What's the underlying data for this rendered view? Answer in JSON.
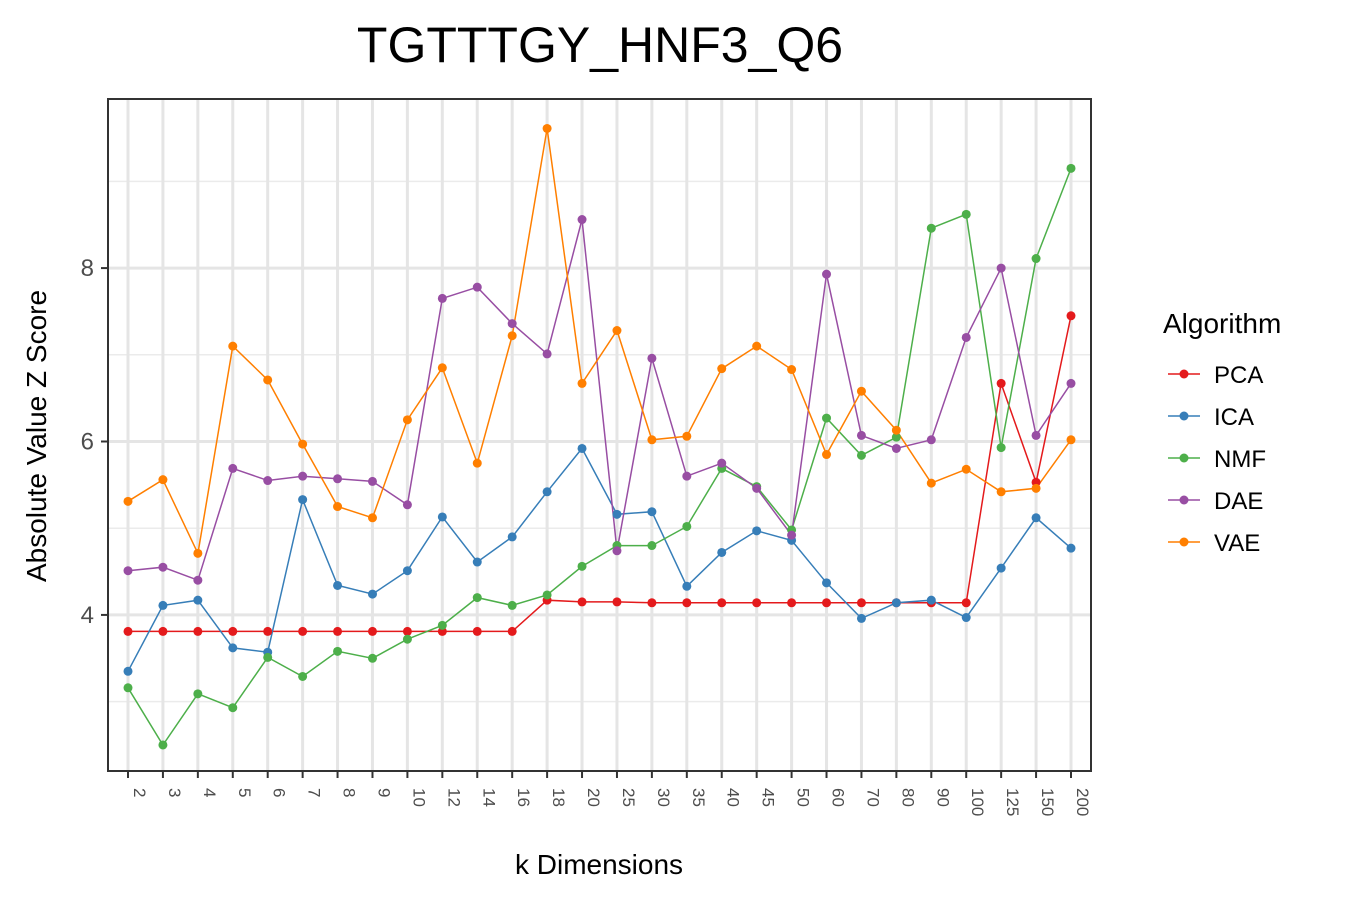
{
  "chart_data": {
    "type": "line",
    "title": "TGTTTGY_HNF3_Q6",
    "xlabel": "k Dimensions",
    "ylabel": "Absolute Value Z Score",
    "categories": [
      "2",
      "3",
      "4",
      "5",
      "6",
      "7",
      "8",
      "9",
      "10",
      "12",
      "14",
      "16",
      "18",
      "20",
      "25",
      "30",
      "35",
      "40",
      "45",
      "50",
      "60",
      "70",
      "80",
      "90",
      "100",
      "125",
      "150",
      "200"
    ],
    "ylim": [
      2.2,
      9.95
    ],
    "yticks": [
      4,
      6,
      8
    ],
    "grid": true,
    "legend_title": "Algorithm",
    "legend_position": "right",
    "series": [
      {
        "name": "PCA",
        "color": "#e41a1c",
        "values": [
          3.81,
          3.81,
          3.81,
          3.81,
          3.81,
          3.81,
          3.81,
          3.81,
          3.81,
          3.81,
          3.81,
          3.81,
          4.17,
          4.15,
          4.15,
          4.14,
          4.14,
          4.14,
          4.14,
          4.14,
          4.14,
          4.14,
          4.14,
          4.14,
          4.14,
          6.67,
          5.53,
          7.45
        ]
      },
      {
        "name": "ICA",
        "color": "#377eb8",
        "values": [
          3.35,
          4.11,
          4.17,
          3.62,
          3.57,
          5.33,
          4.34,
          4.24,
          4.51,
          5.13,
          4.61,
          4.9,
          5.42,
          5.92,
          5.16,
          5.19,
          4.33,
          4.72,
          4.97,
          4.86,
          4.37,
          3.96,
          4.14,
          4.17,
          3.97,
          4.54,
          5.12,
          4.77
        ]
      },
      {
        "name": "NMF",
        "color": "#4daf4a",
        "values": [
          3.16,
          2.5,
          3.09,
          2.93,
          3.51,
          3.29,
          3.58,
          3.5,
          3.72,
          3.88,
          4.2,
          4.11,
          4.23,
          4.56,
          4.8,
          4.8,
          5.02,
          5.69,
          5.48,
          4.98,
          6.27,
          5.84,
          6.05,
          8.46,
          8.62,
          5.93,
          8.11,
          9.15
        ]
      },
      {
        "name": "DAE",
        "color": "#984ea3",
        "values": [
          4.51,
          4.55,
          4.4,
          5.69,
          5.55,
          5.6,
          5.57,
          5.54,
          5.27,
          7.65,
          7.78,
          7.36,
          7.01,
          8.56,
          4.74,
          6.96,
          5.6,
          5.75,
          5.46,
          4.92,
          7.93,
          6.07,
          5.92,
          6.02,
          7.2,
          8.0,
          6.07,
          6.67
        ]
      },
      {
        "name": "VAE",
        "color": "#ff7f00",
        "values": [
          5.31,
          5.56,
          4.71,
          7.1,
          6.71,
          5.97,
          5.25,
          5.12,
          6.25,
          6.85,
          5.75,
          7.22,
          9.61,
          6.67,
          7.28,
          6.02,
          6.06,
          6.84,
          7.1,
          6.83,
          5.85,
          6.58,
          6.13,
          5.52,
          5.68,
          5.42,
          5.46,
          6.02
        ]
      }
    ]
  }
}
